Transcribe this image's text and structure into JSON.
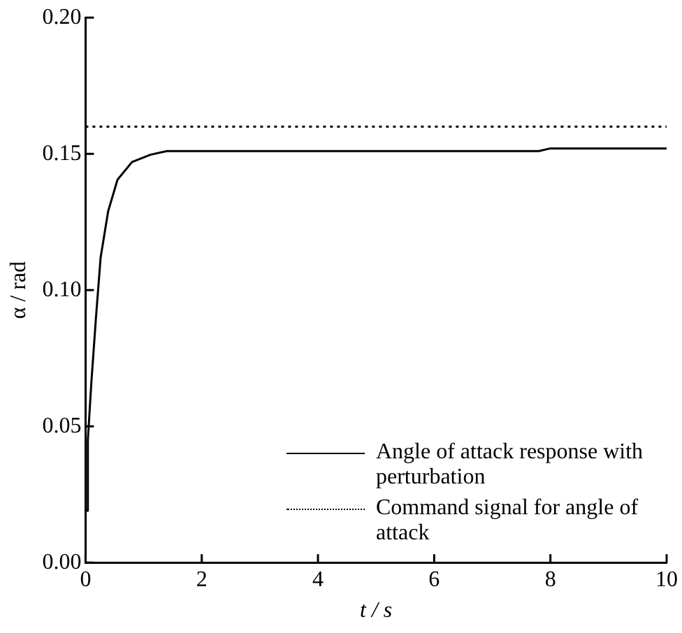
{
  "chart_data": {
    "type": "line",
    "xlabel": "t / s",
    "ylabel": "α / rad",
    "xlim": [
      0,
      10
    ],
    "xticks": [
      0,
      2,
      4,
      6,
      8,
      10
    ],
    "ylim": [
      0,
      0.2
    ],
    "yticks": [
      {
        "value": 0,
        "label": "0.00"
      },
      {
        "value": 0.05,
        "label": "0.05"
      },
      {
        "value": 0.1,
        "label": "0.10"
      },
      {
        "value": 0.15,
        "label": "0.15"
      },
      {
        "value": 0.2,
        "label": "0.20"
      }
    ],
    "grid": false,
    "legend": "bottom right",
    "marker": "none",
    "series": [
      {
        "name": "Angle of attack response with perturbation",
        "color": "#000000",
        "line_style": "solid",
        "x": [
          0,
          0.02,
          0.04,
          0.1,
          0.18,
          0.26,
          0.39,
          0.55,
          0.8,
          1.12,
          1.4,
          2,
          4,
          6,
          7.8,
          8,
          10
        ],
        "values": [
          0.019,
          0.019,
          0.045,
          0.066,
          0.09,
          0.112,
          0.129,
          0.1405,
          0.147,
          0.1497,
          0.151,
          0.151,
          0.151,
          0.151,
          0.151,
          0.152,
          0.152
        ]
      },
      {
        "name": "Command signal for angle of attack",
        "color": "#000000",
        "line_style": "dotted",
        "x": [
          0,
          10
        ],
        "values": [
          0.16,
          0.16
        ]
      }
    ]
  }
}
